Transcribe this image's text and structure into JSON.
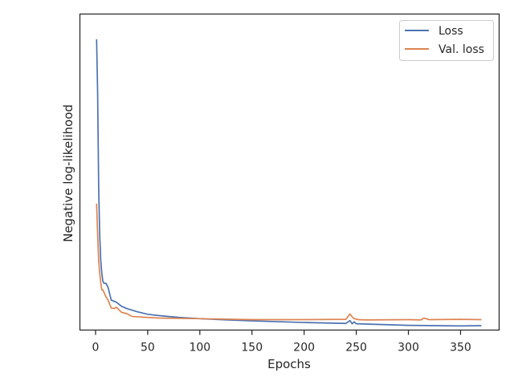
{
  "chart_data": {
    "type": "line",
    "title": "",
    "xlabel": "Epochs",
    "ylabel": "Negative log-likelihood",
    "xlim": [
      -15,
      387
    ],
    "ylim": [
      0,
      100
    ],
    "xticks": [
      0,
      50,
      100,
      150,
      200,
      250,
      300,
      350
    ],
    "y_tick_labels_shown": false,
    "grid": false,
    "legend_position": "top-right",
    "series": [
      {
        "name": "Loss",
        "color": "#4c72b0",
        "x": [
          1,
          2,
          3,
          4,
          5,
          6,
          7,
          8,
          10,
          12,
          15,
          20,
          25,
          30,
          40,
          50,
          60,
          80,
          100,
          120,
          150,
          200,
          240,
          244,
          246,
          248,
          250,
          300,
          350,
          370
        ],
        "y": [
          92.0,
          75.0,
          45.0,
          30.0,
          22.0,
          18.0,
          15.5,
          14.8,
          14.8,
          13.5,
          9.5,
          8.8,
          7.5,
          6.8,
          5.8,
          5.0,
          4.6,
          4.0,
          3.6,
          3.3,
          2.9,
          2.4,
          2.1,
          3.0,
          2.0,
          2.6,
          2.0,
          1.5,
          1.3,
          1.4
        ]
      },
      {
        "name": "Val. loss",
        "color": "#dd8452",
        "x": [
          1,
          2,
          3,
          4,
          5,
          6,
          7,
          8,
          10,
          12,
          15,
          18,
          20,
          25,
          30,
          35,
          40,
          50,
          60,
          80,
          100,
          150,
          200,
          240,
          244,
          246,
          248,
          252,
          260,
          300,
          312,
          315,
          320,
          350,
          370
        ],
        "y": [
          40.0,
          30.0,
          22.0,
          18.0,
          15.0,
          12.7,
          12.7,
          12.0,
          10.5,
          9.5,
          7.0,
          6.8,
          7.2,
          5.6,
          5.2,
          4.3,
          4.2,
          4.0,
          3.8,
          3.7,
          3.6,
          3.3,
          3.3,
          3.4,
          5.1,
          4.2,
          3.6,
          3.3,
          3.2,
          3.3,
          3.2,
          3.8,
          3.3,
          3.4,
          3.3
        ]
      }
    ]
  }
}
